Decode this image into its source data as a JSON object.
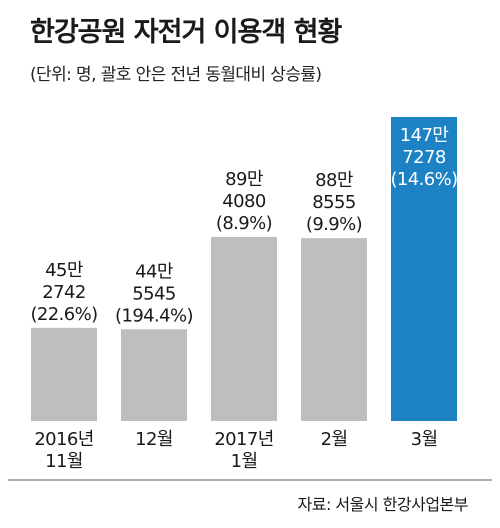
{
  "title": "한강공원 자전거 이용객 현황",
  "subtitle": "(단위: 명, 괄호 안은 전년 동월대비 상승률)",
  "source": "자료: 서울시 한강사업본부",
  "colors": {
    "bar": "#bcbec0",
    "highlight": "#1d82c4",
    "text": "#1a1a1a",
    "highlight_text": "#ffffff"
  },
  "chart_data": {
    "type": "bar",
    "title": "한강공원 자전거 이용객 현황",
    "categories": [
      "2016년 11월",
      "12월",
      "2017년 1월",
      "2월",
      "3월"
    ],
    "category_lines": [
      [
        "2016년",
        "11월"
      ],
      [
        "12월"
      ],
      [
        "2017년",
        "1월"
      ],
      [
        "2월"
      ],
      [
        "3월"
      ]
    ],
    "values": [
      452742,
      445545,
      894080,
      888555,
      1477278
    ],
    "value_lines": [
      [
        "45만",
        "2742"
      ],
      [
        "44만",
        "5545"
      ],
      [
        "89만",
        "4080"
      ],
      [
        "88만",
        "8555"
      ],
      [
        "147만",
        "7278"
      ]
    ],
    "growth_labels": [
      "(22.6%)",
      "(194.4%)",
      "(8.9%)",
      "(9.9%)",
      "(14.6%)"
    ],
    "growth_rates": [
      22.6,
      194.4,
      8.9,
      9.9,
      14.6
    ],
    "highlight_index": 4,
    "unit": "명",
    "ylim": [
      0,
      1477278
    ]
  }
}
